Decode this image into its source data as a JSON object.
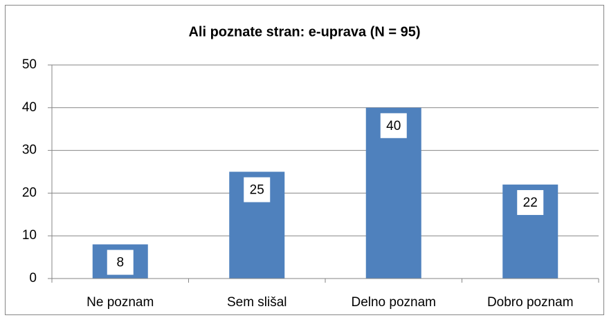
{
  "chart_data": {
    "type": "bar",
    "title": "Ali poznate stran: e-uprava (N = 95)",
    "categories": [
      "Ne poznam",
      "Sem slišal",
      "Delno poznam",
      "Dobro poznam"
    ],
    "values": [
      8,
      25,
      40,
      22
    ],
    "color": "#4f81bd",
    "ylim": [
      0,
      50
    ],
    "yticks": [
      0,
      10,
      20,
      30,
      40,
      50
    ],
    "grid": true,
    "data_labels": true
  }
}
